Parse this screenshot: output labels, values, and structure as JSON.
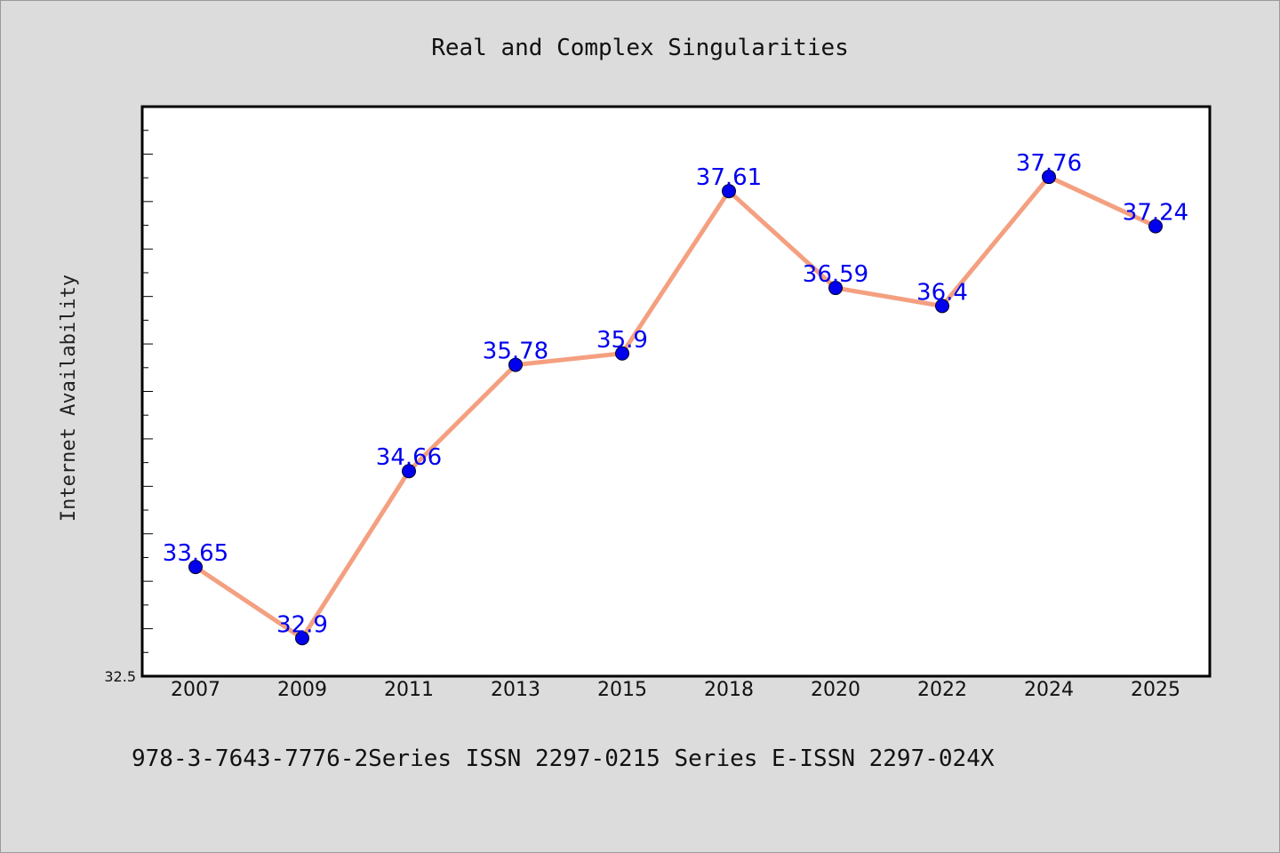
{
  "chart_data": {
    "type": "line",
    "title": "Real and Complex Singularities",
    "ylabel": "Internet Availability",
    "xlabel": "",
    "categories": [
      "2007",
      "2009",
      "2011",
      "2013",
      "2015",
      "2018",
      "2020",
      "2022",
      "2024",
      "2025"
    ],
    "series": [
      {
        "values": [
          33.65,
          32.9,
          34.66,
          35.78,
          35.9,
          37.61,
          36.59,
          36.4,
          37.76,
          37.24
        ],
        "data_labels": [
          "33.65",
          "32.9",
          "34.66",
          "35.78",
          "35.9",
          "37.61",
          "36.59",
          "36.4",
          "37.76",
          "37.24"
        ]
      }
    ],
    "ylim": [
      32.5,
      38.5
    ],
    "y_min_label": "32.5",
    "grid": false,
    "colors": {
      "line": "#f4a080",
      "marker": "#0000ee",
      "label": "#0000ee",
      "plot_bg": "#ffffff",
      "page_bg": "#dcdcdc"
    }
  },
  "footnote": "978-3-7643-7776-2Series ISSN 2297-0215 Series E-ISSN 2297-024X"
}
